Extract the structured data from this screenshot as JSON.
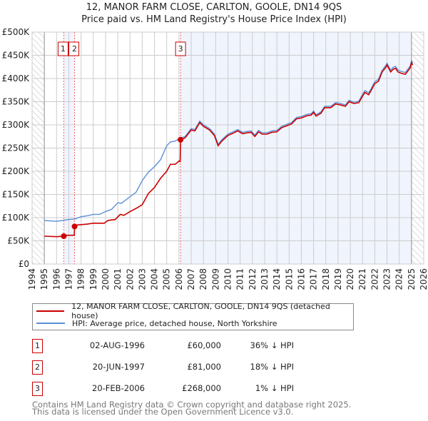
{
  "chart_data": {
    "type": "line",
    "title": "12, MANOR FARM CLOSE, CARLTON, GOOLE, DN14 9QS",
    "subtitle": "Price paid vs. HM Land Registry's House Price Index (HPI)",
    "xlim": [
      1994,
      2026
    ],
    "ylim": [
      0,
      500000
    ],
    "x_ticks": [
      "1994",
      "1995",
      "1996",
      "1997",
      "1998",
      "1999",
      "2000",
      "2001",
      "2002",
      "2003",
      "2004",
      "2005",
      "2006",
      "2007",
      "2008",
      "2009",
      "2010",
      "2011",
      "2012",
      "2013",
      "2014",
      "2015",
      "2016",
      "2017",
      "2018",
      "2019",
      "2020",
      "2021",
      "2022",
      "2023",
      "2024",
      "2025",
      "2026"
    ],
    "y_ticks": [
      {
        "v": 0,
        "label": "£0"
      },
      {
        "v": 50000,
        "label": "£50K"
      },
      {
        "v": 100000,
        "label": "£100K"
      },
      {
        "v": 150000,
        "label": "£150K"
      },
      {
        "v": 200000,
        "label": "£200K"
      },
      {
        "v": 250000,
        "label": "£250K"
      },
      {
        "v": 300000,
        "label": "£300K"
      },
      {
        "v": 350000,
        "label": "£350K"
      },
      {
        "v": 400000,
        "label": "£400K"
      },
      {
        "v": 450000,
        "label": "£450K"
      },
      {
        "v": 500000,
        "label": "£500K"
      }
    ],
    "grid": true,
    "hatched_ranges": [
      [
        1994,
        1995
      ],
      [
        2025,
        2026
      ]
    ],
    "shaded_ranges": [
      [
        1996.59,
        1997.47
      ],
      [
        2006.13,
        2025
      ]
    ],
    "series": [
      {
        "name": "12, MANOR FARM CLOSE, CARLTON, GOOLE, DN14 9QS (detached house)",
        "color": "#cc0000",
        "points": [
          [
            1995,
            60
          ],
          [
            1996,
            59
          ],
          [
            1996.59,
            60
          ],
          [
            1996.6,
            62
          ],
          [
            1997.45,
            62
          ],
          [
            1997.47,
            81
          ],
          [
            1997.6,
            84
          ],
          [
            1998.5,
            86
          ],
          [
            1999,
            88
          ],
          [
            1999.9,
            88
          ],
          [
            2000.2,
            94
          ],
          [
            2000.8,
            96
          ],
          [
            2001.2,
            107
          ],
          [
            2001.5,
            105
          ],
          [
            2002,
            113
          ],
          [
            2002.5,
            120
          ],
          [
            2003,
            128
          ],
          [
            2003.5,
            152
          ],
          [
            2004,
            165
          ],
          [
            2004.5,
            185
          ],
          [
            2005,
            200
          ],
          [
            2005.3,
            215
          ],
          [
            2005.7,
            215
          ],
          [
            2006,
            222
          ],
          [
            2006.1,
            221
          ],
          [
            2006.13,
            268
          ],
          [
            2006.5,
            272
          ],
          [
            2007,
            289
          ],
          [
            2007.3,
            287
          ],
          [
            2007.7,
            305
          ],
          [
            2008,
            297
          ],
          [
            2008.5,
            289
          ],
          [
            2008.9,
            277
          ],
          [
            2009.2,
            255
          ],
          [
            2009.5,
            265
          ],
          [
            2010,
            277
          ],
          [
            2010.5,
            283
          ],
          [
            2010.8,
            287
          ],
          [
            2011.2,
            281
          ],
          [
            2011.6,
            283
          ],
          [
            2011.9,
            284
          ],
          [
            2012.2,
            275
          ],
          [
            2012.5,
            285
          ],
          [
            2012.8,
            280
          ],
          [
            2013.2,
            280
          ],
          [
            2013.6,
            284
          ],
          [
            2014,
            285
          ],
          [
            2014.4,
            294
          ],
          [
            2014.9,
            299
          ],
          [
            2015.2,
            302
          ],
          [
            2015.6,
            313
          ],
          [
            2016,
            315
          ],
          [
            2016.5,
            320
          ],
          [
            2016.8,
            321
          ],
          [
            2017,
            327
          ],
          [
            2017.2,
            319
          ],
          [
            2017.6,
            325
          ],
          [
            2017.9,
            337
          ],
          [
            2018.4,
            337
          ],
          [
            2018.8,
            345
          ],
          [
            2019.2,
            343
          ],
          [
            2019.6,
            340
          ],
          [
            2019.9,
            350
          ],
          [
            2020.3,
            346
          ],
          [
            2020.7,
            348
          ],
          [
            2021,
            362
          ],
          [
            2021.2,
            370
          ],
          [
            2021.5,
            365
          ],
          [
            2021.7,
            374
          ],
          [
            2022,
            389
          ],
          [
            2022.3,
            394
          ],
          [
            2022.6,
            414
          ],
          [
            2022.9,
            424
          ],
          [
            2023,
            429
          ],
          [
            2023.3,
            414
          ],
          [
            2023.5,
            420
          ],
          [
            2023.7,
            422
          ],
          [
            2023.9,
            414
          ],
          [
            2024.2,
            411
          ],
          [
            2024.5,
            409
          ],
          [
            2024.9,
            423
          ],
          [
            2025,
            434
          ],
          [
            2025.1,
            429
          ]
        ]
      },
      {
        "name": "HPI: Average price, detached house, North Yorkshire",
        "color": "#5b8fd6",
        "points": [
          [
            1995,
            94
          ],
          [
            1995.5,
            93
          ],
          [
            1996,
            92
          ],
          [
            1996.5,
            94
          ],
          [
            1997,
            96
          ],
          [
            1997.5,
            97
          ],
          [
            1998,
            102
          ],
          [
            1998.5,
            104
          ],
          [
            1999,
            107
          ],
          [
            1999.5,
            107
          ],
          [
            2000,
            113
          ],
          [
            2000.5,
            118
          ],
          [
            2001,
            132
          ],
          [
            2001.3,
            131
          ],
          [
            2002,
            145
          ],
          [
            2002.5,
            155
          ],
          [
            2003,
            180
          ],
          [
            2003.5,
            198
          ],
          [
            2004,
            210
          ],
          [
            2004.5,
            225
          ],
          [
            2005,
            255
          ],
          [
            2005.3,
            263
          ],
          [
            2005.7,
            265
          ],
          [
            2006,
            270
          ],
          [
            2006.5,
            275
          ],
          [
            2007,
            292
          ],
          [
            2007.3,
            290
          ],
          [
            2007.7,
            308
          ],
          [
            2008,
            300
          ],
          [
            2008.5,
            292
          ],
          [
            2008.9,
            280
          ],
          [
            2009.2,
            258
          ],
          [
            2009.5,
            268
          ],
          [
            2010,
            280
          ],
          [
            2010.5,
            286
          ],
          [
            2010.8,
            290
          ],
          [
            2011.2,
            284
          ],
          [
            2011.6,
            286
          ],
          [
            2011.9,
            287
          ],
          [
            2012.2,
            278
          ],
          [
            2012.5,
            288
          ],
          [
            2012.8,
            283
          ],
          [
            2013.2,
            283
          ],
          [
            2013.6,
            287
          ],
          [
            2014,
            288
          ],
          [
            2014.4,
            297
          ],
          [
            2014.9,
            302
          ],
          [
            2015.2,
            305
          ],
          [
            2015.6,
            316
          ],
          [
            2016,
            318
          ],
          [
            2016.5,
            323
          ],
          [
            2016.8,
            324
          ],
          [
            2017,
            330
          ],
          [
            2017.2,
            322
          ],
          [
            2017.6,
            328
          ],
          [
            2017.9,
            340
          ],
          [
            2018.4,
            340
          ],
          [
            2018.8,
            348
          ],
          [
            2019.2,
            346
          ],
          [
            2019.6,
            343
          ],
          [
            2019.9,
            353
          ],
          [
            2020.3,
            349
          ],
          [
            2020.7,
            351
          ],
          [
            2021,
            366
          ],
          [
            2021.2,
            374
          ],
          [
            2021.5,
            369
          ],
          [
            2021.7,
            378
          ],
          [
            2022,
            393
          ],
          [
            2022.3,
            398
          ],
          [
            2022.6,
            418
          ],
          [
            2022.9,
            428
          ],
          [
            2023,
            433
          ],
          [
            2023.3,
            418
          ],
          [
            2023.5,
            424
          ],
          [
            2023.7,
            426
          ],
          [
            2023.9,
            418
          ],
          [
            2024.2,
            415
          ],
          [
            2024.5,
            413
          ],
          [
            2024.9,
            427
          ],
          [
            2025,
            438
          ],
          [
            2025.1,
            433
          ]
        ]
      }
    ],
    "y_unit_multiplier": 1000,
    "sales": [
      {
        "label": "1",
        "x": 1996.59,
        "price": 60000,
        "date": "02-AUG-1996",
        "price_text": "£60,000",
        "hpi_text": "36% ↓ HPI"
      },
      {
        "label": "2",
        "x": 1997.47,
        "price": 81000,
        "date": "20-JUN-1997",
        "price_text": "£81,000",
        "hpi_text": "18% ↓ HPI"
      },
      {
        "label": "3",
        "x": 2006.13,
        "price": 268000,
        "date": "20-FEB-2006",
        "price_text": "£268,000",
        "hpi_text": "1% ↓ HPI"
      }
    ]
  },
  "footer": {
    "line1": "Contains HM Land Registry data © Crown copyright and database right 2025.",
    "line2": "This data is licensed under the Open Government Licence v3.0."
  }
}
